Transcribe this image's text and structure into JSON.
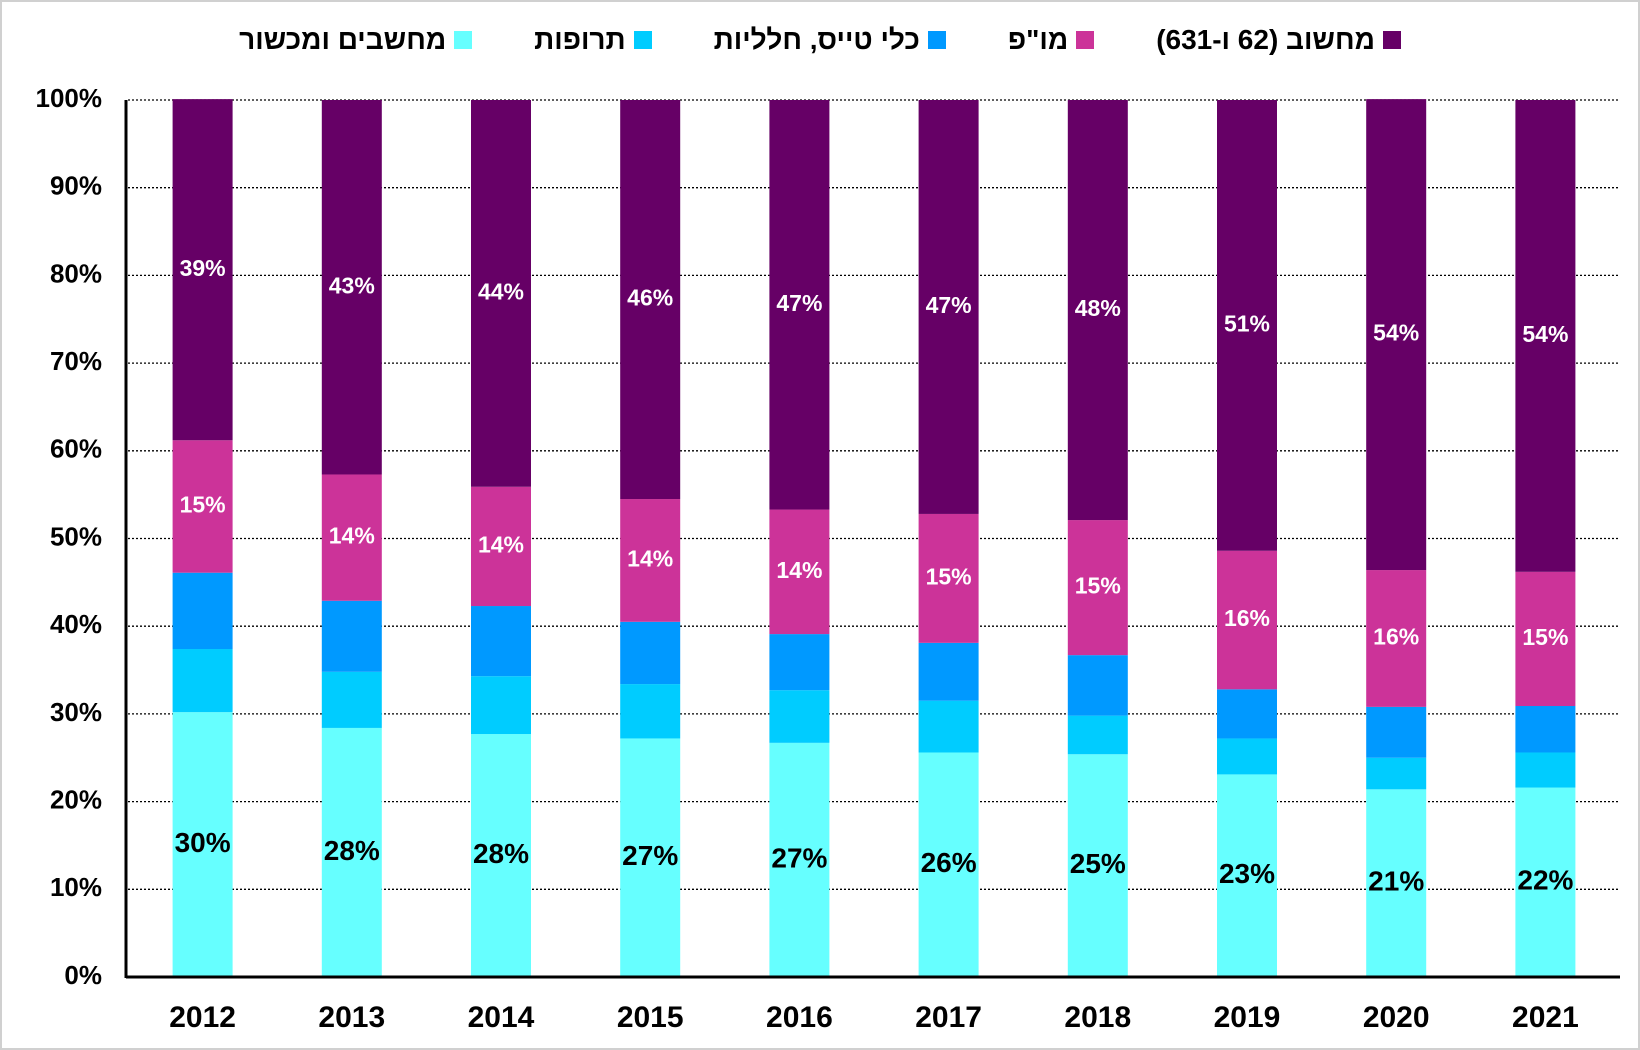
{
  "chart_data": {
    "type": "stacked_bar",
    "categories": [
      "2012",
      "2013",
      "2014",
      "2015",
      "2016",
      "2017",
      "2018",
      "2019",
      "2020",
      "2021"
    ],
    "series": [
      {
        "name": "מחשבים ומכשור",
        "color": "#66ffff",
        "values": [
          30.2,
          28.4,
          27.7,
          27.2,
          26.7,
          25.6,
          25.4,
          23.1,
          21.4,
          21.6
        ],
        "value_labels": [
          "30%",
          "28%",
          "28%",
          "27%",
          "27%",
          "26%",
          "25%",
          "23%",
          "21%",
          "22%"
        ]
      },
      {
        "name": "תרופות",
        "color": "#00ccff",
        "values": [
          7.2,
          6.4,
          6.6,
          6.2,
          6.0,
          5.9,
          4.4,
          4.1,
          3.6,
          4.0
        ]
      },
      {
        "name": "כלי טייס, חלליות",
        "color": "#0099ff",
        "values": [
          8.7,
          8.1,
          8.0,
          7.1,
          6.4,
          6.6,
          6.9,
          5.6,
          5.8,
          5.3
        ]
      },
      {
        "name": "מו\"פ",
        "color": "#cc3399",
        "values": [
          15.1,
          14.4,
          13.6,
          14.0,
          14.2,
          14.7,
          15.4,
          15.8,
          15.6,
          15.3
        ],
        "value_labels": [
          "15%",
          "14%",
          "14%",
          "14%",
          "14%",
          "15%",
          "15%",
          "16%",
          "16%",
          "15%"
        ]
      },
      {
        "name": "מחשוב (62 ו-631)",
        "color": "#660066",
        "values": [
          38.9,
          42.7,
          44.1,
          45.5,
          46.7,
          47.2,
          47.9,
          51.4,
          53.7,
          53.8
        ],
        "value_labels": [
          "39%",
          "43%",
          "44%",
          "46%",
          "47%",
          "47%",
          "48%",
          "51%",
          "54%",
          "54%"
        ]
      }
    ],
    "ylim": [
      0,
      100
    ],
    "yticks": [
      {
        "value": 0,
        "label": "0%"
      },
      {
        "value": 10,
        "label": "10%"
      },
      {
        "value": 20,
        "label": "20%"
      },
      {
        "value": 30,
        "label": "30%"
      },
      {
        "value": 40,
        "label": "40%"
      },
      {
        "value": 50,
        "label": "50%"
      },
      {
        "value": 60,
        "label": "60%"
      },
      {
        "value": 70,
        "label": "70%"
      },
      {
        "value": 80,
        "label": "80%"
      },
      {
        "value": 90,
        "label": "90%"
      },
      {
        "value": 100,
        "label": "100%"
      }
    ],
    "grid": true,
    "legend": "top"
  }
}
